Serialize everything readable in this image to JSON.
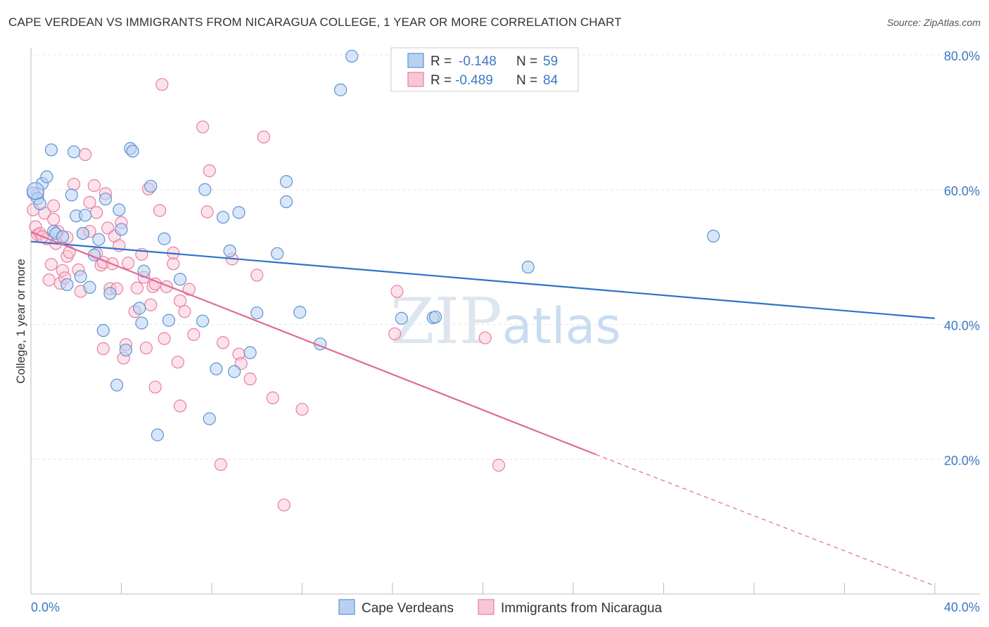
{
  "title": "CAPE VERDEAN VS IMMIGRANTS FROM NICARAGUA COLLEGE, 1 YEAR OR MORE CORRELATION CHART",
  "source": "Source: ZipAtlas.com",
  "watermark": "ZIPatlas",
  "legend": {
    "row1": {
      "r_label": "R =",
      "r_value": "-0.148",
      "n_label": "N =",
      "n_value": "59"
    },
    "row2": {
      "r_label": "R =",
      "r_value": "-0.489",
      "n_label": "N =",
      "n_value": "84"
    }
  },
  "colors": {
    "blue": "#5b93d6",
    "pink": "#e87ea1",
    "blue_line": "#2f72c8",
    "pink_line": "#e06a93",
    "tick": "#3b78c4"
  },
  "chart_data": {
    "type": "scatter",
    "ylabel": "College, 1 year or more",
    "xlim": [
      0,
      40
    ],
    "ylim": [
      0,
      80
    ],
    "x_tick_labels": [
      "0.0%",
      "40.0%"
    ],
    "y_ticks": [
      20,
      40,
      60,
      80
    ],
    "y_tick_labels": [
      "20.0%",
      "40.0%",
      "60.0%",
      "80.0%"
    ],
    "grid": true,
    "series": [
      {
        "name": "Cape Verdeans",
        "color": "#5b93d6",
        "R": -0.148,
        "N": 59,
        "trend": {
          "x0": 0,
          "y0": 52.3,
          "x1": 40,
          "y1": 40.9
        },
        "points": [
          [
            0.1,
            59.5
          ],
          [
            0.3,
            58.7
          ],
          [
            0.4,
            57.9
          ],
          [
            0.5,
            60.9
          ],
          [
            0.7,
            61.9
          ],
          [
            0.9,
            65.9
          ],
          [
            1.0,
            53.8
          ],
          [
            1.1,
            53.5
          ],
          [
            1.4,
            53.0
          ],
          [
            1.6,
            45.9
          ],
          [
            1.8,
            59.2
          ],
          [
            1.9,
            65.6
          ],
          [
            2.0,
            56.1
          ],
          [
            2.2,
            47.1
          ],
          [
            2.3,
            53.5
          ],
          [
            2.4,
            56.2
          ],
          [
            2.6,
            45.5
          ],
          [
            2.8,
            50.3
          ],
          [
            3.0,
            52.6
          ],
          [
            3.2,
            39.1
          ],
          [
            3.3,
            58.6
          ],
          [
            3.5,
            44.6
          ],
          [
            3.8,
            31.0
          ],
          [
            3.9,
            57.0
          ],
          [
            4.0,
            54.1
          ],
          [
            4.2,
            36.2
          ],
          [
            4.4,
            66.1
          ],
          [
            4.5,
            65.7
          ],
          [
            4.8,
            42.4
          ],
          [
            4.9,
            40.2
          ],
          [
            5.0,
            47.9
          ],
          [
            5.3,
            60.5
          ],
          [
            5.6,
            23.6
          ],
          [
            5.9,
            52.7
          ],
          [
            6.1,
            40.6
          ],
          [
            6.6,
            46.7
          ],
          [
            7.6,
            40.5
          ],
          [
            7.7,
            60.0
          ],
          [
            7.9,
            26.0
          ],
          [
            8.2,
            33.4
          ],
          [
            8.5,
            55.9
          ],
          [
            8.8,
            50.9
          ],
          [
            9.0,
            33.0
          ],
          [
            9.2,
            56.6
          ],
          [
            9.7,
            35.8
          ],
          [
            10.0,
            41.7
          ],
          [
            10.9,
            50.5
          ],
          [
            11.3,
            61.2
          ],
          [
            11.3,
            58.2
          ],
          [
            11.9,
            41.8
          ],
          [
            12.8,
            37.1
          ],
          [
            13.7,
            74.8
          ],
          [
            14.2,
            79.8
          ],
          [
            16.4,
            40.9
          ],
          [
            17.8,
            41.0
          ],
          [
            17.9,
            41.1
          ],
          [
            22.0,
            48.5
          ],
          [
            30.2,
            53.1
          ],
          [
            0.2,
            59.8
          ]
        ]
      },
      {
        "name": "Immigrants from Nicaragua",
        "color": "#e87ea1",
        "R": -0.489,
        "N": 84,
        "trend": {
          "x0": 0,
          "y0": 53.7,
          "x1": 25,
          "y1": 20.7,
          "dash_x1": 40,
          "dash_y1": 1.2
        },
        "points": [
          [
            0.1,
            57.0
          ],
          [
            0.2,
            54.5
          ],
          [
            0.3,
            53.3
          ],
          [
            0.3,
            59.4
          ],
          [
            0.4,
            53.5
          ],
          [
            0.6,
            56.5
          ],
          [
            0.7,
            52.7
          ],
          [
            0.8,
            46.6
          ],
          [
            0.9,
            48.9
          ],
          [
            1.0,
            55.6
          ],
          [
            1.0,
            57.6
          ],
          [
            1.2,
            53.8
          ],
          [
            1.3,
            46.1
          ],
          [
            1.4,
            48.0
          ],
          [
            1.5,
            46.9
          ],
          [
            1.6,
            52.9
          ],
          [
            1.6,
            50.1
          ],
          [
            1.7,
            50.7
          ],
          [
            1.9,
            60.8
          ],
          [
            2.1,
            48.1
          ],
          [
            2.2,
            44.9
          ],
          [
            2.3,
            53.5
          ],
          [
            2.4,
            65.2
          ],
          [
            2.6,
            53.8
          ],
          [
            2.6,
            58.1
          ],
          [
            2.8,
            60.6
          ],
          [
            2.9,
            50.5
          ],
          [
            2.9,
            56.6
          ],
          [
            3.1,
            48.8
          ],
          [
            3.2,
            49.2
          ],
          [
            3.2,
            36.4
          ],
          [
            3.3,
            59.4
          ],
          [
            3.4,
            54.3
          ],
          [
            3.5,
            45.3
          ],
          [
            3.6,
            49.0
          ],
          [
            3.7,
            53.1
          ],
          [
            3.8,
            45.3
          ],
          [
            3.9,
            51.7
          ],
          [
            4.0,
            55.1
          ],
          [
            4.1,
            35.0
          ],
          [
            4.2,
            37.0
          ],
          [
            4.3,
            49.1
          ],
          [
            4.6,
            41.9
          ],
          [
            4.7,
            45.4
          ],
          [
            4.9,
            50.4
          ],
          [
            5.0,
            47.0
          ],
          [
            5.1,
            36.5
          ],
          [
            5.2,
            60.1
          ],
          [
            5.3,
            42.9
          ],
          [
            5.4,
            45.6
          ],
          [
            5.5,
            46.0
          ],
          [
            5.5,
            30.7
          ],
          [
            5.7,
            56.9
          ],
          [
            5.8,
            75.6
          ],
          [
            5.9,
            37.9
          ],
          [
            6.0,
            45.6
          ],
          [
            6.3,
            49.0
          ],
          [
            6.3,
            50.6
          ],
          [
            6.5,
            34.4
          ],
          [
            6.6,
            43.5
          ],
          [
            6.6,
            27.9
          ],
          [
            6.8,
            41.9
          ],
          [
            7.0,
            45.2
          ],
          [
            7.2,
            38.5
          ],
          [
            7.6,
            69.3
          ],
          [
            7.8,
            56.7
          ],
          [
            7.9,
            62.8
          ],
          [
            8.4,
            19.2
          ],
          [
            8.5,
            37.3
          ],
          [
            8.9,
            49.7
          ],
          [
            9.2,
            35.6
          ],
          [
            9.3,
            34.2
          ],
          [
            9.7,
            31.9
          ],
          [
            10.0,
            47.3
          ],
          [
            10.3,
            67.8
          ],
          [
            10.7,
            29.1
          ],
          [
            11.2,
            13.2
          ],
          [
            12.0,
            27.4
          ],
          [
            16.1,
            38.6
          ],
          [
            16.2,
            44.9
          ],
          [
            20.1,
            38.0
          ],
          [
            20.7,
            19.1
          ],
          [
            0.5,
            53.0
          ],
          [
            1.1,
            52.0
          ]
        ]
      }
    ]
  }
}
